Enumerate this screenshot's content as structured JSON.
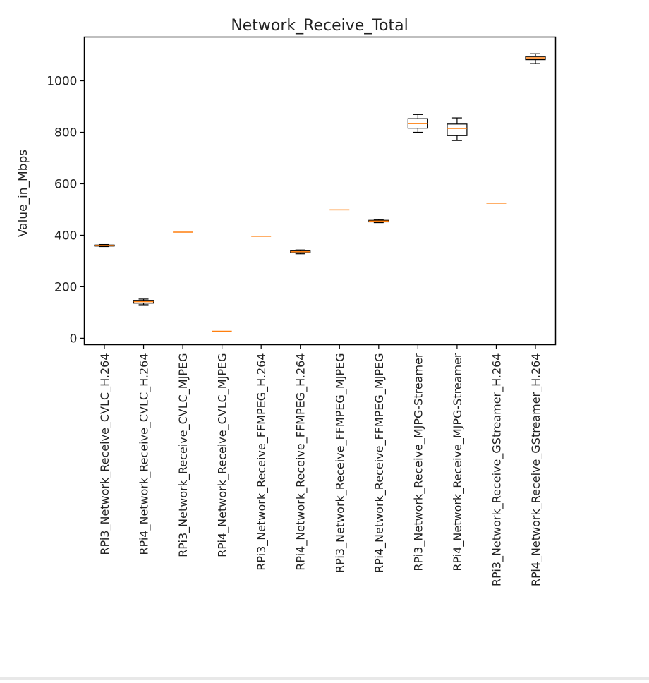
{
  "chart_data": {
    "type": "box",
    "title": "Network_Receive_Total",
    "xlabel": "",
    "ylabel": "Value_in_Mbps",
    "ylim": [
      -25,
      1170
    ],
    "yticks": [
      0,
      200,
      400,
      600,
      800,
      1000
    ],
    "grid": false,
    "categories": [
      "RPi3_Network_Receive_CVLC_H.264",
      "RPi4_Network_Receive_CVLC_H.264",
      "RPi3_Network_Receive_CVLC_MJPEG",
      "RPi4_Network_Receive_CVLC_MJPEG",
      "RPi3_Network_Receive_FFMPEG_H.264",
      "RPi4_Network_Receive_FFMPEG_H.264",
      "RPi3_Network_Receive_FFMPEG_MJPEG",
      "RPi4_Network_Receive_FFMPEG_MJPEG",
      "RPi3_Network_Receive_MJPG-Streamer",
      "RPi4_Network_Receive_MJPG-Streamer",
      "RPi3_Network_Receive_GStreamer_H.264",
      "RPi4_Network_Receive_GStreamer_H.264"
    ],
    "boxes": [
      {
        "whislo": 356,
        "q1": 358,
        "med": 360,
        "q3": 362,
        "whishi": 364
      },
      {
        "whislo": 130,
        "q1": 136,
        "med": 142,
        "q3": 147,
        "whishi": 152
      },
      {
        "whislo": 412,
        "q1": 412,
        "med": 412,
        "q3": 412,
        "whishi": 412
      },
      {
        "whislo": 27,
        "q1": 27,
        "med": 27,
        "q3": 27,
        "whishi": 27
      },
      {
        "whislo": 396,
        "q1": 396,
        "med": 396,
        "q3": 396,
        "whishi": 396
      },
      {
        "whislo": 328,
        "q1": 332,
        "med": 336,
        "q3": 339,
        "whishi": 343
      },
      {
        "whislo": 499,
        "q1": 499,
        "med": 499,
        "q3": 499,
        "whishi": 499
      },
      {
        "whislo": 449,
        "q1": 452,
        "med": 455,
        "q3": 458,
        "whishi": 461
      },
      {
        "whislo": 800,
        "q1": 816,
        "med": 834,
        "q3": 853,
        "whishi": 869
      },
      {
        "whislo": 768,
        "q1": 787,
        "med": 815,
        "q3": 832,
        "whishi": 856
      },
      {
        "whislo": 525,
        "q1": 525,
        "med": 525,
        "q3": 525,
        "whishi": 525
      },
      {
        "whislo": 1067,
        "q1": 1082,
        "med": 1089,
        "q3": 1094,
        "whishi": 1105
      }
    ],
    "box_color": "#000000",
    "median_color": "#ff7f0e"
  }
}
